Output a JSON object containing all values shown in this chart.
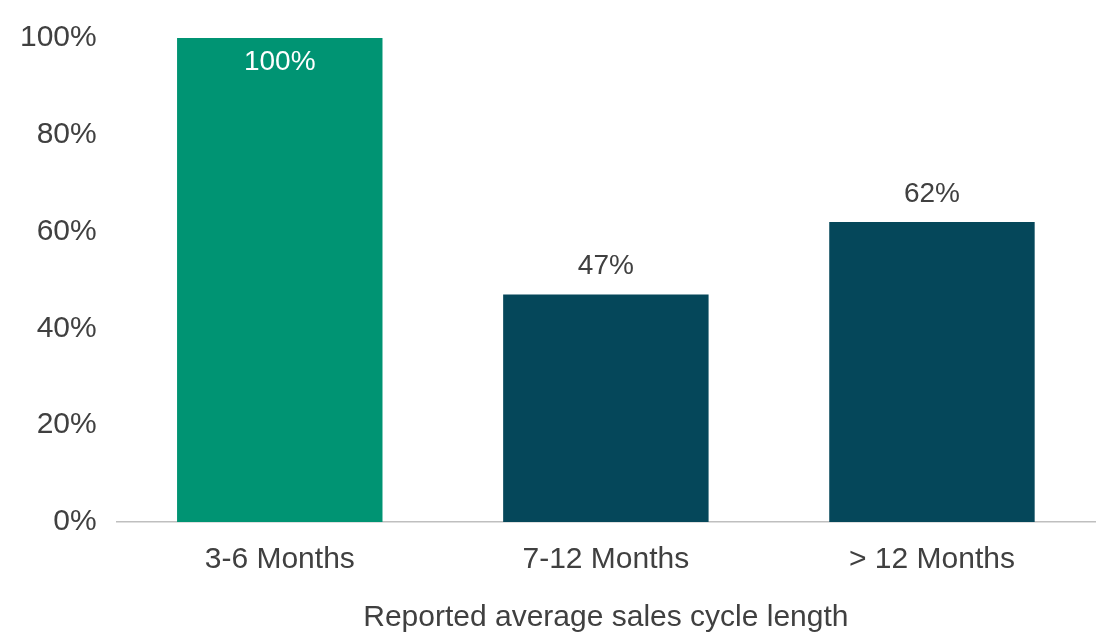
{
  "chart_data": {
    "type": "bar",
    "xlabel": "Reported average sales cycle length",
    "categories": [
      "3-6 Months",
      "7-12 Months",
      "> 12 Months"
    ],
    "values": [
      100,
      47,
      62
    ],
    "colors": [
      "#009473",
      "#05475a",
      "#05475a"
    ],
    "value_labels": [
      "100%",
      "47%",
      "62%"
    ],
    "ylim": [
      0,
      100
    ],
    "yticks": [
      {
        "value": 0,
        "label": "0%"
      },
      {
        "value": 20,
        "label": "20%"
      },
      {
        "value": 40,
        "label": "40%"
      },
      {
        "value": 60,
        "label": "60%"
      },
      {
        "value": 80,
        "label": "80%"
      },
      {
        "value": 100,
        "label": "100%"
      }
    ],
    "grid": false,
    "legend": false
  }
}
